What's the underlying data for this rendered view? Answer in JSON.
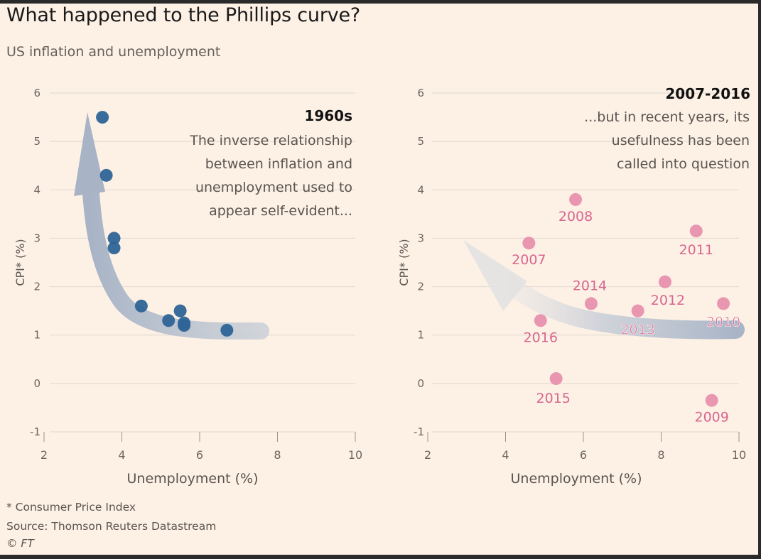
{
  "header": {
    "title": "What happened to the Phillips curve?",
    "subtitle": "US inflation and unemployment"
  },
  "footer": {
    "footnote": "* Consumer Price Index",
    "source": "Source: Thomson Reuters Datastream",
    "copyright": "© FT"
  },
  "colors": {
    "background": "#fdf1e6",
    "series_1960s": "#2e6497",
    "series_2007_2016": "#e890ad",
    "label_2007_2016": "#d9668f",
    "arrow": "#a8b4c6",
    "grid": "#e4dcd3"
  },
  "chart_data": [
    {
      "type": "scatter",
      "title": "1960s",
      "annotation": [
        "The inverse relationship",
        "between inflation and",
        "unemployment used to",
        "appear self-evident..."
      ],
      "xlabel": "Unemployment (%)",
      "ylabel": "CPI* (%)",
      "xlim": [
        2,
        10
      ],
      "ylim": [
        -1,
        6
      ],
      "x_ticks": [
        "2",
        "4",
        "6",
        "8",
        "10"
      ],
      "y_ticks": [
        "-1",
        "0",
        "1",
        "2",
        "3",
        "4",
        "5",
        "6"
      ],
      "grid": true,
      "series": [
        {
          "points": [
            {
              "x": 3.5,
              "y": 5.5
            },
            {
              "x": 3.6,
              "y": 4.3
            },
            {
              "x": 3.8,
              "y": 3.0
            },
            {
              "x": 3.8,
              "y": 2.8
            },
            {
              "x": 4.5,
              "y": 1.6
            },
            {
              "x": 5.2,
              "y": 1.3
            },
            {
              "x": 5.5,
              "y": 1.5
            },
            {
              "x": 5.6,
              "y": 1.25
            },
            {
              "x": 5.6,
              "y": 1.2
            },
            {
              "x": 6.7,
              "y": 1.1
            }
          ]
        }
      ]
    },
    {
      "type": "scatter",
      "title": "2007-2016",
      "annotation": [
        "...but in recent years, its",
        "usefulness has been",
        "called into question"
      ],
      "xlabel": "Unemployment (%)",
      "ylabel": "CPI* (%)",
      "xlim": [
        2,
        10
      ],
      "ylim": [
        -1,
        6
      ],
      "x_ticks": [
        "2",
        "4",
        "6",
        "8",
        "10"
      ],
      "y_ticks": [
        "-1",
        "0",
        "1",
        "2",
        "3",
        "4",
        "5",
        "6"
      ],
      "grid": true,
      "series": [
        {
          "points": [
            {
              "label": "2007",
              "x": 4.6,
              "y": 2.9
            },
            {
              "label": "2008",
              "x": 5.8,
              "y": 3.8
            },
            {
              "label": "2009",
              "x": 9.3,
              "y": -0.35
            },
            {
              "label": "2010",
              "x": 9.6,
              "y": 1.65
            },
            {
              "label": "2011",
              "x": 8.9,
              "y": 3.15
            },
            {
              "label": "2012",
              "x": 8.1,
              "y": 2.1
            },
            {
              "label": "2013",
              "x": 7.4,
              "y": 1.5
            },
            {
              "label": "2014",
              "x": 6.2,
              "y": 1.65
            },
            {
              "label": "2015",
              "x": 5.3,
              "y": 0.1
            },
            {
              "label": "2016",
              "x": 4.9,
              "y": 1.3
            }
          ]
        }
      ]
    }
  ]
}
